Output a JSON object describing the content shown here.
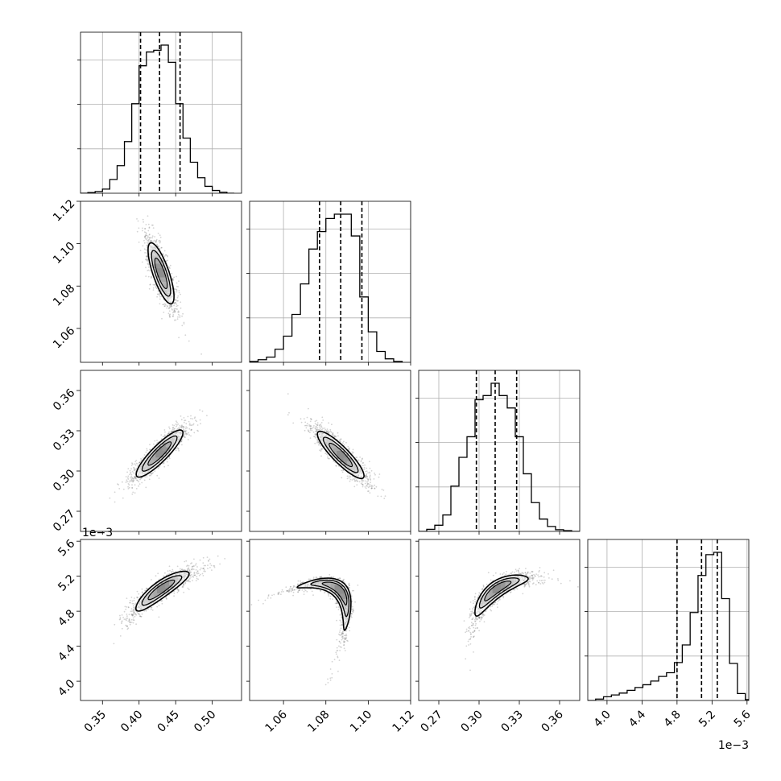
{
  "chart_data": {
    "type": "corner",
    "grid": true,
    "parameters": [
      {
        "range": [
          0.32,
          0.54
        ],
        "ticks": [
          0.35,
          0.4,
          0.45,
          0.5
        ],
        "tick_labels": [
          "0.35",
          "0.40",
          "0.45",
          "0.50"
        ]
      },
      {
        "range": [
          1.044,
          1.12
        ],
        "ticks": [
          1.06,
          1.08,
          1.1,
          1.12
        ],
        "tick_labels": [
          "1.06",
          "1.08",
          "1.10",
          "1.12"
        ]
      },
      {
        "range": [
          0.255,
          0.375
        ],
        "ticks": [
          0.27,
          0.3,
          0.33,
          0.36
        ],
        "tick_labels": [
          "0.27",
          "0.30",
          "0.33",
          "0.36"
        ]
      },
      {
        "range": [
          3.78,
          5.62
        ],
        "ticks": [
          4.0,
          4.4,
          4.8,
          5.2,
          5.6
        ],
        "tick_labels": [
          "4.0",
          "4.4",
          "4.8",
          "5.2",
          "5.6"
        ],
        "scale_label": "1e−3"
      }
    ],
    "marginals": [
      {
        "quantiles": [
          0.402,
          0.428,
          0.456
        ],
        "bins": [
          0.32,
          0.33,
          0.34,
          0.35,
          0.36,
          0.37,
          0.38,
          0.39,
          0.4,
          0.41,
          0.42,
          0.43,
          0.44,
          0.45,
          0.46,
          0.47,
          0.48,
          0.49,
          0.5,
          0.51,
          0.52,
          0.53
        ],
        "counts": [
          0,
          2,
          5,
          12,
          40,
          80,
          150,
          260,
          370,
          410,
          415,
          430,
          380,
          260,
          160,
          90,
          45,
          20,
          8,
          3,
          0
        ]
      },
      {
        "quantiles": [
          1.077,
          1.087,
          1.097
        ],
        "bins": [
          1.044,
          1.048,
          1.052,
          1.056,
          1.06,
          1.064,
          1.068,
          1.072,
          1.076,
          1.08,
          1.084,
          1.088,
          1.092,
          1.096,
          1.1,
          1.104,
          1.108,
          1.112,
          1.116
        ],
        "counts": [
          2,
          6,
          12,
          30,
          60,
          110,
          180,
          260,
          300,
          330,
          340,
          340,
          290,
          150,
          70,
          25,
          8,
          2
        ]
      },
      {
        "quantiles": [
          0.298,
          0.312,
          0.328
        ],
        "bins": [
          0.255,
          0.261,
          0.267,
          0.273,
          0.279,
          0.285,
          0.291,
          0.297,
          0.303,
          0.309,
          0.315,
          0.321,
          0.327,
          0.333,
          0.339,
          0.345,
          0.351,
          0.357,
          0.363,
          0.369,
          0.375
        ],
        "counts": [
          0,
          5,
          15,
          40,
          110,
          180,
          230,
          320,
          330,
          360,
          330,
          300,
          230,
          140,
          70,
          30,
          12,
          4,
          2,
          0
        ]
      },
      {
        "quantiles": [
          4.8,
          5.08,
          5.26
        ],
        "bins": [
          3.78,
          3.87,
          3.96,
          4.05,
          4.14,
          4.23,
          4.32,
          4.41,
          4.5,
          4.59,
          4.68,
          4.77,
          4.86,
          4.95,
          5.04,
          5.13,
          5.22,
          5.31,
          5.4,
          5.49,
          5.58,
          5.62
        ],
        "counts": [
          0,
          3,
          8,
          12,
          16,
          22,
          28,
          34,
          42,
          52,
          60,
          82,
          120,
          190,
          270,
          315,
          320,
          220,
          80,
          15,
          2
        ]
      }
    ],
    "pairs": [
      {
        "x": 0,
        "y": 1,
        "center": [
          0.43,
          1.086
        ],
        "axis_a": [
          -1.0,
          1.0
        ],
        "sa": 0.025,
        "sb": 0.0025,
        "curv": 0
      },
      {
        "x": 0,
        "y": 2,
        "center": [
          0.428,
          0.313
        ],
        "axis_a": [
          1.0,
          0.55
        ],
        "sa": 0.032,
        "sb": 0.006,
        "curv": 0
      },
      {
        "x": 1,
        "y": 2,
        "center": [
          1.087,
          0.312
        ],
        "axis_a": [
          1.0,
          -1.6
        ],
        "sa": 0.012,
        "sb": 0.006,
        "curv": 0
      },
      {
        "x": 0,
        "y": 3,
        "center": [
          0.43,
          5.05
        ],
        "axis_a": [
          1.0,
          6.0
        ],
        "sa": 0.2,
        "sb": 0.035,
        "curv": -10
      },
      {
        "x": 1,
        "y": 3,
        "center": [
          1.086,
          5.05
        ],
        "axis_a": [
          1.0,
          -22.0
        ],
        "sa": 0.22,
        "sb": 0.028,
        "curv": -100
      },
      {
        "x": 2,
        "y": 3,
        "center": [
          0.313,
          5.05
        ],
        "axis_a": [
          1.0,
          11.0
        ],
        "sa": 0.22,
        "sb": 0.03,
        "curv": -35
      }
    ]
  }
}
